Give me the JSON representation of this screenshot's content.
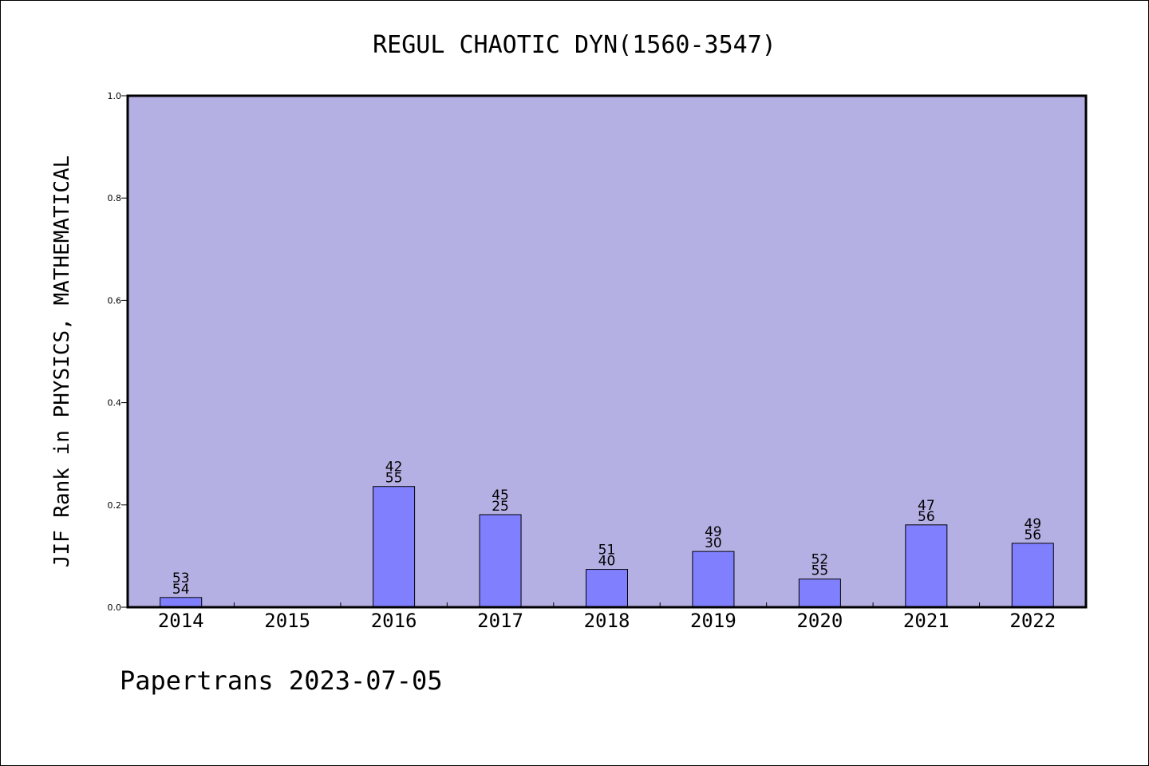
{
  "chart_data": {
    "type": "bar",
    "title": "REGUL CHAOTIC DYN(1560-3547)",
    "xlabel": "",
    "ylabel": "JIF Rank in PHYSICS, MATHEMATICAL",
    "ylim": [
      0,
      1.0
    ],
    "yticks": [
      "0.0",
      "0.2",
      "0.4",
      "0.6",
      "0.8",
      "1.0"
    ],
    "categories": [
      "2014",
      "2015",
      "2016",
      "2017",
      "2018",
      "2019",
      "2020",
      "2021",
      "2022"
    ],
    "values": [
      0.019,
      null,
      0.236,
      0.181,
      0.074,
      0.109,
      0.055,
      0.161,
      0.125
    ],
    "labels_top": [
      "53",
      "",
      "42",
      "45",
      "51",
      "49",
      "52",
      "47",
      "49"
    ],
    "labels_bottom": [
      "54",
      "",
      "55",
      "25",
      "40",
      "30",
      "55",
      "56",
      "56"
    ],
    "plot_bg": "#b5b0e3",
    "bar_color": "#8080ff",
    "grid": false,
    "legend": "none"
  },
  "footer": "Papertrans 2023-07-05"
}
